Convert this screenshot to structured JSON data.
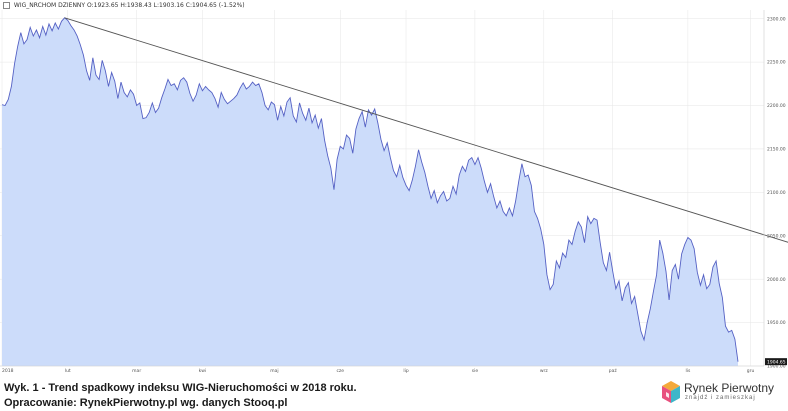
{
  "legend": {
    "series_name": "WIG_NRCHOM",
    "interval": "DZIENNY",
    "open": "O:1923.65",
    "high": "H:1938.43",
    "low": "L:1903.16",
    "close": "C:1904.65",
    "change": "(-1.52%)"
  },
  "caption": {
    "line1": "Wyk. 1 - Trend spadkowy indeksu WIG-Nieruchomości w 2018 roku.",
    "line2": "Opracowanie: RynekPierwotny.pl wg. danych Stooq.pl"
  },
  "logo": {
    "name": "Rynek Pierwotny",
    "tagline": "znajdź i zamieszkaj"
  },
  "colors": {
    "area_fill": "#ccdcfa",
    "line": "#5561c4",
    "trend": "#555555",
    "grid": "#e6e6e6",
    "last_value_bg": "#1a1a1a"
  },
  "chart_data": {
    "type": "area",
    "series": [
      {
        "name": "WIG_NRCHOM",
        "values": [
          2201,
          2200,
          2207,
          2222,
          2248,
          2268,
          2284,
          2271,
          2276,
          2290,
          2280,
          2287,
          2278,
          2291,
          2281,
          2294,
          2286,
          2295,
          2288,
          2297,
          2301,
          2298,
          2292,
          2287,
          2280,
          2270,
          2258,
          2240,
          2229,
          2255,
          2235,
          2230,
          2252,
          2240,
          2222,
          2238,
          2228,
          2208,
          2227,
          2215,
          2210,
          2218,
          2213,
          2200,
          2203,
          2185,
          2186,
          2192,
          2203,
          2192,
          2197,
          2209,
          2219,
          2230,
          2223,
          2225,
          2218,
          2229,
          2232,
          2227,
          2214,
          2205,
          2212,
          2225,
          2217,
          2222,
          2218,
          2215,
          2208,
          2198,
          2215,
          2207,
          2202,
          2205,
          2208,
          2212,
          2220,
          2226,
          2219,
          2222,
          2227,
          2223,
          2225,
          2215,
          2200,
          2195,
          2204,
          2201,
          2183,
          2199,
          2188,
          2204,
          2209,
          2188,
          2181,
          2203,
          2191,
          2183,
          2197,
          2180,
          2189,
          2174,
          2185,
          2160,
          2142,
          2128,
          2103,
          2138,
          2153,
          2150,
          2166,
          2162,
          2145,
          2173,
          2185,
          2193,
          2175,
          2195,
          2189,
          2196,
          2180,
          2161,
          2148,
          2157,
          2140,
          2125,
          2118,
          2131,
          2117,
          2108,
          2102,
          2114,
          2130,
          2149,
          2135,
          2123,
          2107,
          2093,
          2102,
          2088,
          2096,
          2101,
          2090,
          2093,
          2107,
          2098,
          2120,
          2130,
          2124,
          2137,
          2140,
          2132,
          2140,
          2128,
          2113,
          2100,
          2110,
          2095,
          2082,
          2090,
          2078,
          2073,
          2082,
          2073,
          2090,
          2113,
          2133,
          2118,
          2120,
          2108,
          2078,
          2070,
          2058,
          2040,
          2005,
          1988,
          1994,
          2021,
          2013,
          2030,
          2025,
          2045,
          2040,
          2055,
          2066,
          2060,
          2042,
          2072,
          2064,
          2070,
          2068,
          2042,
          2019,
          2010,
          2031,
          2009,
          1989,
          1998,
          1975,
          1990,
          1996,
          1972,
          1980,
          1960,
          1940,
          1930,
          1950,
          1966,
          1986,
          2005,
          2045,
          2030,
          2009,
          1976,
          2010,
          2017,
          2000,
          2029,
          2040,
          2048,
          2045,
          2035,
          2008,
          1993,
          2005,
          1989,
          1994,
          2014,
          2021,
          1995,
          1979,
          1946,
          1939,
          1941,
          1931,
          1905
        ]
      }
    ],
    "trendline": {
      "from_index": 20,
      "from_value": 2301,
      "to_index": 255,
      "to_value": 2038
    },
    "x_tick_labels": [
      {
        "label": "2018",
        "index": 0
      },
      {
        "label": "lut",
        "index": 21
      },
      {
        "label": "mar",
        "index": 43
      },
      {
        "label": "kwi",
        "index": 64
      },
      {
        "label": "maj",
        "index": 87
      },
      {
        "label": "cze",
        "index": 108
      },
      {
        "label": "lip",
        "index": 129
      },
      {
        "label": "sie",
        "index": 151
      },
      {
        "label": "wrz",
        "index": 173
      },
      {
        "label": "paź",
        "index": 195
      },
      {
        "label": "lis",
        "index": 219
      },
      {
        "label": "gru",
        "index": 239
      }
    ],
    "y_ticks": [
      "1900.00",
      "1950.00",
      "2000.00",
      "2050.00",
      "2100.00",
      "2150.00",
      "2200.00",
      "2250.00",
      "2300.00"
    ],
    "ylim": [
      1900,
      2310
    ],
    "last_value_label": "1904.65",
    "grid": true
  }
}
